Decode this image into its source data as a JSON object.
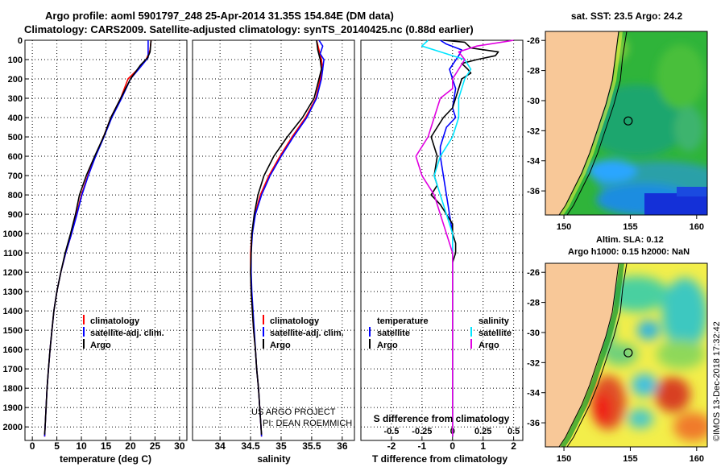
{
  "header": {
    "title_line1": "Argo profile: aoml 5901797_248 25-Apr-2014 31.35S 154.84E (DM data)",
    "title_line2": "Climatology: CARS2009. Satellite-adjusted climatology: synTS_20140425.nc (0.88d earlier)"
  },
  "credit": {
    "project_line1": "US ARGO PROJECT",
    "project_line2": "PI: DEAN ROEMMICH",
    "imos": "©IMOS 13-Dec-2018 17:32:42"
  },
  "colors": {
    "climatology": "#ff0000",
    "satellite": "#0000ff",
    "argo": "#000000",
    "sal_satellite": "#00e5ff",
    "sal_argo": "#e100e1",
    "land": "#f8c898",
    "coast_green": "#3cb43c"
  },
  "legends": {
    "temp": [
      "climatology",
      "satellite-adj. clim.",
      "Argo"
    ],
    "sal": [
      "climatology",
      "satellite-adj. clim.",
      "Argo"
    ],
    "diff_temp_title": "temperature",
    "diff_temp": [
      "satellite",
      "Argo"
    ],
    "diff_sal_title": "salinity",
    "diff_sal": [
      "satellite",
      "Argo"
    ]
  },
  "maps": {
    "sst_title": "sat. SST: 23.5 Argo: 24.2",
    "sla_title1": "Altim. SLA: 0.12",
    "sla_title2": "Argo h1000: 0.15 h2000: NaN",
    "lat_ticks": [
      "-26",
      "-28",
      "-30",
      "-32",
      "-34",
      "-36"
    ],
    "lon_ticks": [
      "150",
      "155",
      "160"
    ],
    "argo_position": {
      "lon": 154.84,
      "lat": -31.35
    }
  },
  "chart_data": [
    {
      "type": "line",
      "id": "temperature",
      "xlabel": "temperature (deg C)",
      "ylabel": "",
      "xlim": [
        -1.5,
        31.5
      ],
      "ylim": [
        2070,
        0
      ],
      "xticks": [
        0,
        5,
        10,
        15,
        20,
        25,
        30
      ],
      "yticks": [
        0,
        100,
        200,
        300,
        400,
        500,
        600,
        700,
        800,
        900,
        1000,
        1100,
        1200,
        1300,
        1400,
        1500,
        1600,
        1700,
        1800,
        1900,
        2000
      ],
      "series": [
        {
          "name": "climatology",
          "color": "climatology",
          "points": [
            [
              24.2,
              0
            ],
            [
              24.0,
              50
            ],
            [
              23.2,
              100
            ],
            [
              21.5,
              150
            ],
            [
              19.5,
              200
            ],
            [
              18.0,
              300
            ],
            [
              16.0,
              400
            ],
            [
              14.5,
              500
            ],
            [
              12.8,
              600
            ],
            [
              11.3,
              700
            ],
            [
              10.0,
              800
            ],
            [
              9.0,
              900
            ],
            [
              8.0,
              1000
            ],
            [
              6.8,
              1100
            ],
            [
              5.8,
              1200
            ],
            [
              5.0,
              1300
            ],
            [
              4.4,
              1400
            ],
            [
              4.0,
              1500
            ],
            [
              3.6,
              1600
            ],
            [
              3.3,
              1700
            ],
            [
              3.0,
              1800
            ],
            [
              2.8,
              1900
            ],
            [
              2.6,
              2000
            ],
            [
              2.5,
              2050
            ]
          ]
        },
        {
          "name": "satellite-adj. clim.",
          "color": "satellite",
          "points": [
            [
              23.6,
              0
            ],
            [
              23.6,
              90
            ],
            [
              22.0,
              140
            ],
            [
              20.0,
              200
            ],
            [
              18.2,
              300
            ],
            [
              16.2,
              400
            ],
            [
              14.6,
              500
            ],
            [
              12.9,
              600
            ],
            [
              11.4,
              700
            ],
            [
              10.1,
              800
            ],
            [
              9.1,
              900
            ],
            [
              8.0,
              1000
            ],
            [
              6.8,
              1100
            ],
            [
              5.8,
              1200
            ],
            [
              5.0,
              1300
            ],
            [
              4.4,
              1400
            ],
            [
              4.0,
              1500
            ],
            [
              3.6,
              1600
            ],
            [
              3.3,
              1700
            ],
            [
              3.0,
              1800
            ],
            [
              2.8,
              1900
            ],
            [
              2.6,
              2000
            ],
            [
              2.5,
              2050
            ]
          ]
        },
        {
          "name": "Argo",
          "color": "argo",
          "points": [
            [
              24.2,
              0
            ],
            [
              24.0,
              60
            ],
            [
              23.5,
              90
            ],
            [
              22.0,
              130
            ],
            [
              20.0,
              200
            ],
            [
              18.0,
              300
            ],
            [
              16.0,
              400
            ],
            [
              14.5,
              500
            ],
            [
              12.7,
              600
            ],
            [
              11.0,
              700
            ],
            [
              9.6,
              800
            ],
            [
              8.8,
              900
            ],
            [
              7.8,
              1000
            ],
            [
              6.7,
              1100
            ],
            [
              5.8,
              1200
            ],
            [
              5.0,
              1300
            ],
            [
              4.4,
              1400
            ],
            [
              4.0,
              1500
            ],
            [
              3.6,
              1600
            ],
            [
              3.3,
              1700
            ],
            [
              3.0,
              1800
            ],
            [
              2.8,
              1900
            ],
            [
              2.6,
              2000
            ],
            [
              2.5,
              2040
            ]
          ]
        }
      ]
    },
    {
      "type": "line",
      "id": "salinity",
      "xlabel": "salinity",
      "ylabel": "",
      "xlim": [
        33.55,
        36.2
      ],
      "ylim": [
        2070,
        0
      ],
      "xticks": [
        34,
        34.5,
        35,
        35.5,
        36
      ],
      "series": [
        {
          "name": "climatology",
          "color": "climatology",
          "points": [
            [
              35.58,
              0
            ],
            [
              35.62,
              50
            ],
            [
              35.66,
              100
            ],
            [
              35.68,
              150
            ],
            [
              35.64,
              200
            ],
            [
              35.57,
              300
            ],
            [
              35.4,
              400
            ],
            [
              35.18,
              500
            ],
            [
              34.98,
              600
            ],
            [
              34.8,
              700
            ],
            [
              34.66,
              800
            ],
            [
              34.57,
              900
            ],
            [
              34.52,
              1000
            ],
            [
              34.5,
              1100
            ],
            [
              34.5,
              1200
            ],
            [
              34.51,
              1300
            ],
            [
              34.53,
              1400
            ],
            [
              34.55,
              1500
            ],
            [
              34.58,
              1600
            ],
            [
              34.6,
              1700
            ],
            [
              34.63,
              1800
            ],
            [
              34.65,
              1900
            ],
            [
              34.67,
              2000
            ],
            [
              34.68,
              2050
            ]
          ]
        },
        {
          "name": "satellite-adj. clim.",
          "color": "satellite",
          "points": [
            [
              35.62,
              0
            ],
            [
              35.68,
              30
            ],
            [
              35.64,
              70
            ],
            [
              35.7,
              100
            ],
            [
              35.68,
              150
            ],
            [
              35.66,
              200
            ],
            [
              35.58,
              300
            ],
            [
              35.42,
              400
            ],
            [
              35.2,
              500
            ],
            [
              35.0,
              600
            ],
            [
              34.82,
              700
            ],
            [
              34.68,
              800
            ],
            [
              34.58,
              900
            ],
            [
              34.53,
              1000
            ],
            [
              34.51,
              1100
            ],
            [
              34.51,
              1200
            ],
            [
              34.52,
              1300
            ],
            [
              34.54,
              1400
            ],
            [
              34.56,
              1500
            ],
            [
              34.58,
              1600
            ],
            [
              34.6,
              1700
            ],
            [
              34.63,
              1800
            ],
            [
              34.65,
              1900
            ],
            [
              34.67,
              2000
            ],
            [
              34.68,
              2050
            ]
          ]
        },
        {
          "name": "Argo",
          "color": "argo",
          "points": [
            [
              35.58,
              0
            ],
            [
              35.6,
              50
            ],
            [
              35.64,
              100
            ],
            [
              35.66,
              150
            ],
            [
              35.62,
              200
            ],
            [
              35.54,
              300
            ],
            [
              35.35,
              400
            ],
            [
              35.1,
              500
            ],
            [
              34.88,
              600
            ],
            [
              34.72,
              700
            ],
            [
              34.62,
              800
            ],
            [
              34.56,
              900
            ],
            [
              34.52,
              1000
            ],
            [
              34.51,
              1100
            ],
            [
              34.5,
              1200
            ],
            [
              34.51,
              1300
            ],
            [
              34.53,
              1400
            ],
            [
              34.55,
              1500
            ],
            [
              34.58,
              1600
            ],
            [
              34.6,
              1700
            ],
            [
              34.63,
              1800
            ],
            [
              34.65,
              1900
            ],
            [
              34.67,
              2000
            ],
            [
              34.68,
              2040
            ]
          ]
        }
      ]
    },
    {
      "type": "line",
      "id": "difference",
      "xlabel": "T difference from climatology",
      "xlabel2": "S difference from climatology",
      "xlim": [
        -3,
        2.3
      ],
      "ylim": [
        2070,
        0
      ],
      "xticks": [
        -2,
        -1,
        0,
        1,
        2
      ],
      "xtick_labels": [
        "-2",
        "-1",
        "0",
        "1",
        "2"
      ],
      "s_xticks": [
        -0.5,
        -0.25,
        0,
        0.25,
        0.5
      ],
      "s_xtick_labels": [
        "-0.5",
        "-0.25",
        "0",
        "0.25",
        "0.5"
      ],
      "s_scale": 4,
      "series": [
        {
          "name": "temperature satellite",
          "color": "satellite",
          "points": [
            [
              -0.4,
              0
            ],
            [
              -0.2,
              20
            ],
            [
              0.3,
              50
            ],
            [
              0.2,
              80
            ],
            [
              -0.1,
              150
            ],
            [
              0.1,
              250
            ],
            [
              0.0,
              350
            ],
            [
              0.1,
              400
            ],
            [
              -0.2,
              450
            ],
            [
              -0.3,
              500
            ],
            [
              -0.4,
              550
            ],
            [
              -0.4,
              600
            ],
            [
              -0.3,
              700
            ],
            [
              -0.2,
              800
            ],
            [
              -0.1,
              900
            ],
            [
              0,
              1000
            ],
            [
              0,
              1100
            ],
            [
              0,
              1500
            ],
            [
              0,
              2000
            ],
            [
              0,
              2050
            ]
          ]
        },
        {
          "name": "temperature Argo",
          "color": "argo",
          "points": [
            [
              -0.3,
              0
            ],
            [
              0.4,
              10
            ],
            [
              0.6,
              40
            ],
            [
              1.5,
              60
            ],
            [
              1.4,
              80
            ],
            [
              0.8,
              100
            ],
            [
              0.3,
              120
            ],
            [
              0.5,
              150
            ],
            [
              0.6,
              170
            ],
            [
              0.3,
              200
            ],
            [
              0.2,
              250
            ],
            [
              0.1,
              300
            ],
            [
              0,
              350
            ],
            [
              -0.3,
              400
            ],
            [
              -0.5,
              450
            ],
            [
              -0.7,
              500
            ],
            [
              -0.6,
              550
            ],
            [
              -0.5,
              600
            ],
            [
              -0.6,
              700
            ],
            [
              -0.5,
              750
            ],
            [
              -0.7,
              800
            ],
            [
              -0.4,
              850
            ],
            [
              -0.2,
              900
            ],
            [
              0,
              950
            ],
            [
              0,
              1000
            ],
            [
              0.1,
              1050
            ],
            [
              0.1,
              1100
            ],
            [
              0,
              1150
            ],
            [
              0,
              1500
            ],
            [
              0,
              2000
            ],
            [
              0,
              2050
            ]
          ]
        },
        {
          "name": "salinity satellite",
          "color": "sal_satellite",
          "points": [
            [
              -0.2,
              0
            ],
            [
              -0.25,
              30
            ],
            [
              -0.1,
              60
            ],
            [
              0.1,
              100
            ],
            [
              0.15,
              150
            ],
            [
              0.1,
              200
            ],
            [
              0.05,
              300
            ],
            [
              0.05,
              400
            ],
            [
              0,
              500
            ],
            [
              -0.1,
              600
            ],
            [
              -0.15,
              700
            ],
            [
              -0.1,
              800
            ],
            [
              -0.05,
              900
            ],
            [
              0,
              1000
            ],
            [
              0,
              1100
            ],
            [
              0,
              1500
            ],
            [
              0,
              2000
            ],
            [
              0,
              2050
            ]
          ]
        },
        {
          "name": "salinity Argo",
          "color": "sal_argo",
          "points": [
            [
              0.5,
              0
            ],
            [
              0.2,
              30
            ],
            [
              0.05,
              60
            ],
            [
              0.1,
              100
            ],
            [
              0.05,
              150
            ],
            [
              0,
              200
            ],
            [
              0,
              250
            ],
            [
              -0.1,
              300
            ],
            [
              -0.15,
              400
            ],
            [
              -0.2,
              500
            ],
            [
              -0.3,
              600
            ],
            [
              -0.25,
              700
            ],
            [
              -0.15,
              800
            ],
            [
              -0.1,
              900
            ],
            [
              -0.05,
              1000
            ],
            [
              0,
              1100
            ],
            [
              0,
              1500
            ],
            [
              0,
              2000
            ],
            [
              0,
              2050
            ]
          ]
        }
      ]
    }
  ]
}
